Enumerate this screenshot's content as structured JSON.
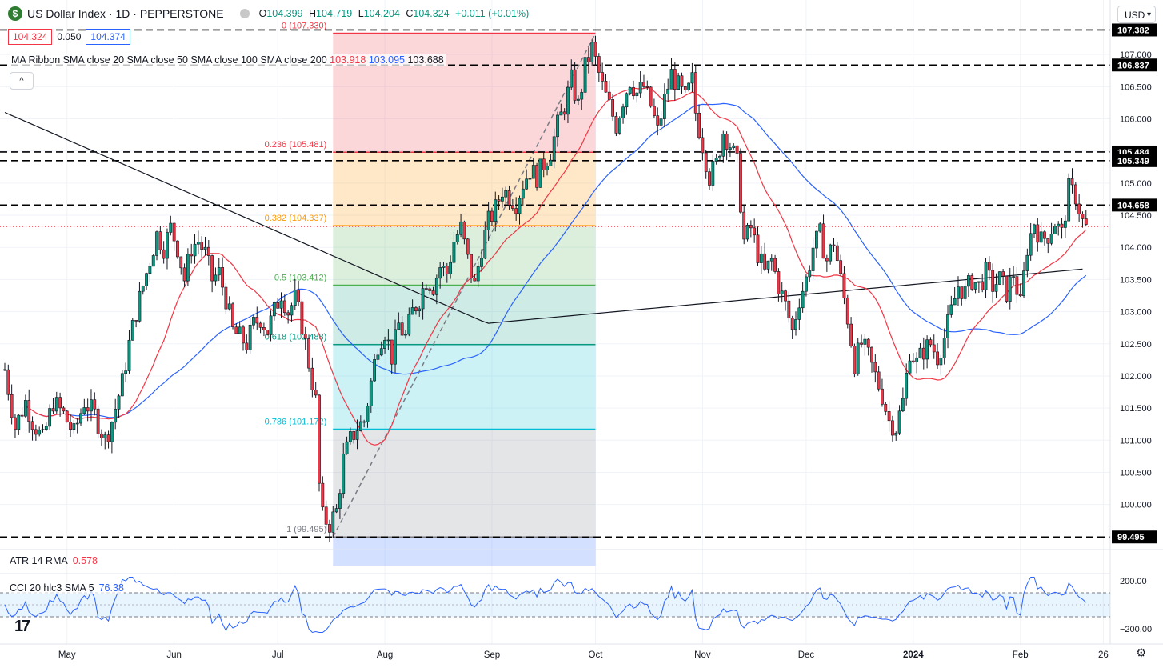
{
  "header": {
    "symbol_title": "US Dollar Index · 1D · PEPPERSTONE",
    "logo_letter": "$",
    "ohlc": {
      "o_label": "O",
      "o": "104.399",
      "h_label": "H",
      "h": "104.719",
      "l_label": "L",
      "l": "104.204",
      "c_label": "C",
      "c": "104.324",
      "change": "+0.011 (+0.01%)"
    },
    "sell_price": "104.324",
    "spread": "0.050",
    "buy_price": "104.374",
    "currency": "USD"
  },
  "ma_ribbon": {
    "label": "MA Ribbon SMA close 20 SMA close 50 SMA close 100 SMA close 200",
    "v20": "103.918",
    "v50": "103.095",
    "v200": "103.688"
  },
  "indicators": {
    "atr_label": "ATR 14 RMA",
    "atr_value": "0.578",
    "cci_label": "CCI 20 hlc3 SMA 5",
    "cci_value": "76.38"
  },
  "colors": {
    "up": "#089981",
    "down": "#f23645",
    "ma20": "#f23645",
    "ma50": "#2962ff",
    "ma200": "#131722"
  },
  "chart_data": {
    "type": "candlestick",
    "price_axis": [
      "107.000",
      "106.500",
      "106.000",
      "105.500",
      "105.000",
      "104.500",
      "104.000",
      "103.500",
      "103.000",
      "102.500",
      "102.000",
      "101.500",
      "101.000",
      "100.500",
      "100.000"
    ],
    "price_ticks": [
      107.0,
      106.5,
      106.0,
      105.5,
      105.0,
      104.5,
      104.0,
      103.5,
      103.0,
      102.5,
      102.0,
      101.5,
      101.0,
      100.5,
      100.0
    ],
    "ylim": [
      99.05,
      107.45
    ],
    "time_axis": [
      {
        "label": "May",
        "day": 18
      },
      {
        "label": "Jun",
        "day": 49
      },
      {
        "label": "Jul",
        "day": 79
      },
      {
        "label": "Aug",
        "day": 110
      },
      {
        "label": "Sep",
        "day": 141
      },
      {
        "label": "Oct",
        "day": 171
      },
      {
        "label": "Nov",
        "day": 202
      },
      {
        "label": "Dec",
        "day": 232
      },
      {
        "label": "2024",
        "day": 263
      },
      {
        "label": "Feb",
        "day": 294
      },
      {
        "label": "26",
        "day": 318
      }
    ],
    "date_range": [
      "2023-04-13",
      "2024-02-16"
    ],
    "horizontal_levels": [
      {
        "label": "107.382",
        "value": 107.382
      },
      {
        "label": "106.837",
        "value": 106.837
      },
      {
        "label": "105.484",
        "value": 105.484
      },
      {
        "label": "105.349",
        "value": 105.349
      },
      {
        "label": "104.658",
        "value": 104.658
      },
      {
        "label": "99.495",
        "value": 99.495
      }
    ],
    "fibonacci": {
      "from_day": 95,
      "to_day": 171,
      "levels": [
        {
          "label": "0 (107.330)",
          "value": 107.33,
          "color": "#f23645",
          "fill": "rgba(242,54,69,0.20)"
        },
        {
          "label": "0.236 (105.481)",
          "value": 105.481,
          "color": "#f23645",
          "fill": "rgba(255,152,0,0.22)"
        },
        {
          "label": "0.382 (104.337)",
          "value": 104.337,
          "color": "#ff9800",
          "fill": "rgba(76,175,80,0.20)"
        },
        {
          "label": "0.5 (103.412)",
          "value": 103.412,
          "color": "#4caf50",
          "fill": "rgba(8,153,129,0.20)"
        },
        {
          "label": "0.618 (102.488)",
          "value": 102.488,
          "color": "#089981",
          "fill": "rgba(0,188,212,0.20)"
        },
        {
          "label": "0.786 (101.172)",
          "value": 101.172,
          "color": "#00bcd4",
          "fill": "rgba(120,123,134,0.20)"
        },
        {
          "label": "1 (99.495)",
          "value": 99.495,
          "color": "#787b86",
          "fill": "rgba(41,98,255,0.20)"
        }
      ]
    },
    "closes": [
      [
        0,
        102.1
      ],
      [
        3,
        101.2
      ],
      [
        6,
        101.6
      ],
      [
        8,
        101.3
      ],
      [
        11,
        101.0
      ],
      [
        14,
        101.6
      ],
      [
        17,
        101.4
      ],
      [
        20,
        101.1
      ],
      [
        23,
        101.6
      ],
      [
        26,
        101.4
      ],
      [
        29,
        101.0
      ],
      [
        31,
        101.3
      ],
      [
        34,
        101.9
      ],
      [
        36,
        102.5
      ],
      [
        38,
        103.0
      ],
      [
        40,
        103.4
      ],
      [
        42,
        103.8
      ],
      [
        44,
        104.2
      ],
      [
        46,
        104.0
      ],
      [
        48,
        104.3
      ],
      [
        50,
        104.0
      ],
      [
        52,
        103.5
      ],
      [
        54,
        104.0
      ],
      [
        56,
        104.1
      ],
      [
        58,
        103.9
      ],
      [
        60,
        103.5
      ],
      [
        62,
        103.6
      ],
      [
        64,
        103.2
      ],
      [
        66,
        102.7
      ],
      [
        68,
        102.6
      ],
      [
        70,
        102.5
      ],
      [
        72,
        102.8
      ],
      [
        74,
        102.9
      ],
      [
        76,
        102.7
      ],
      [
        78,
        103.0
      ],
      [
        80,
        103.3
      ],
      [
        82,
        103.0
      ],
      [
        84,
        103.2
      ],
      [
        86,
        102.8
      ],
      [
        88,
        102.2
      ],
      [
        90,
        101.6
      ],
      [
        91,
        100.3
      ],
      [
        92,
        99.8
      ],
      [
        94,
        99.7
      ],
      [
        96,
        99.9
      ],
      [
        98,
        100.7
      ],
      [
        100,
        101.0
      ],
      [
        102,
        101.2
      ],
      [
        104,
        101.3
      ],
      [
        106,
        101.9
      ],
      [
        108,
        102.5
      ],
      [
        110,
        102.7
      ],
      [
        112,
        102.3
      ],
      [
        114,
        102.8
      ],
      [
        116,
        102.6
      ],
      [
        118,
        103.0
      ],
      [
        120,
        103.2
      ],
      [
        122,
        103.5
      ],
      [
        124,
        103.4
      ],
      [
        126,
        103.7
      ],
      [
        128,
        103.6
      ],
      [
        130,
        104.1
      ],
      [
        132,
        104.3
      ],
      [
        134,
        103.8
      ],
      [
        136,
        103.4
      ],
      [
        138,
        104.0
      ],
      [
        140,
        104.4
      ],
      [
        142,
        104.6
      ],
      [
        144,
        104.9
      ],
      [
        146,
        104.8
      ],
      [
        148,
        104.7
      ],
      [
        150,
        105.0
      ],
      [
        152,
        105.2
      ],
      [
        154,
        105.1
      ],
      [
        156,
        105.3
      ],
      [
        158,
        105.5
      ],
      [
        160,
        105.9
      ],
      [
        162,
        106.2
      ],
      [
        164,
        106.6
      ],
      [
        166,
        106.2
      ],
      [
        168,
        106.8
      ],
      [
        170,
        107.1
      ],
      [
        171,
        106.9
      ],
      [
        173,
        106.5
      ],
      [
        175,
        106.2
      ],
      [
        177,
        105.9
      ],
      [
        179,
        106.3
      ],
      [
        181,
        106.6
      ],
      [
        183,
        106.4
      ],
      [
        185,
        106.5
      ],
      [
        187,
        106.2
      ],
      [
        189,
        105.8
      ],
      [
        191,
        106.3
      ],
      [
        193,
        106.7
      ],
      [
        195,
        106.5
      ],
      [
        197,
        106.3
      ],
      [
        199,
        106.6
      ],
      [
        200,
        106.1
      ],
      [
        202,
        105.6
      ],
      [
        204,
        105.1
      ],
      [
        206,
        105.3
      ],
      [
        208,
        105.8
      ],
      [
        210,
        105.6
      ],
      [
        212,
        105.3
      ],
      [
        214,
        104.1
      ],
      [
        216,
        104.3
      ],
      [
        218,
        103.9
      ],
      [
        220,
        103.6
      ],
      [
        222,
        103.8
      ],
      [
        224,
        103.4
      ],
      [
        226,
        103.1
      ],
      [
        228,
        102.7
      ],
      [
        230,
        103.2
      ],
      [
        232,
        103.5
      ],
      [
        234,
        104.0
      ],
      [
        236,
        104.2
      ],
      [
        238,
        103.8
      ],
      [
        240,
        104.1
      ],
      [
        242,
        103.5
      ],
      [
        244,
        102.9
      ],
      [
        246,
        102.2
      ],
      [
        248,
        102.5
      ],
      [
        250,
        102.3
      ],
      [
        252,
        102.0
      ],
      [
        254,
        101.7
      ],
      [
        256,
        101.3
      ],
      [
        258,
        101.2
      ],
      [
        260,
        101.6
      ],
      [
        262,
        102.4
      ],
      [
        264,
        102.2
      ],
      [
        266,
        102.4
      ],
      [
        268,
        102.5
      ],
      [
        270,
        102.3
      ],
      [
        272,
        102.6
      ],
      [
        274,
        103.0
      ],
      [
        276,
        103.4
      ],
      [
        278,
        103.3
      ],
      [
        280,
        103.5
      ],
      [
        282,
        103.4
      ],
      [
        284,
        103.6
      ],
      [
        286,
        103.4
      ],
      [
        288,
        103.5
      ],
      [
        290,
        103.3
      ],
      [
        292,
        103.6
      ],
      [
        294,
        103.1
      ],
      [
        296,
        104.0
      ],
      [
        298,
        104.4
      ],
      [
        300,
        104.1
      ],
      [
        302,
        104.2
      ],
      [
        304,
        104.4
      ],
      [
        306,
        104.2
      ],
      [
        308,
        104.9
      ],
      [
        310,
        104.8
      ],
      [
        312,
        104.4
      ],
      [
        313,
        104.3
      ]
    ]
  }
}
